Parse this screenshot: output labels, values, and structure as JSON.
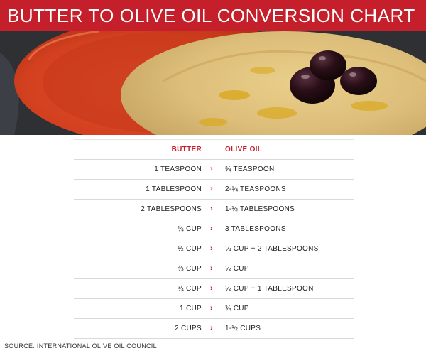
{
  "title": "BUTTER TO OLIVE OIL CONVERSION CHART",
  "photo": "hummus-with-olive-oil-and-olives",
  "table": {
    "headers": {
      "butter": "BUTTER",
      "olive_oil": "OLIVE OIL"
    },
    "rows": [
      {
        "butter": "1 TEASPOON",
        "olive_oil": "¾ TEASPOON"
      },
      {
        "butter": "1 TABLESPOON",
        "olive_oil": "2-¼ TEASPOONS"
      },
      {
        "butter": "2 TABLESPOONS",
        "olive_oil": "1-½ TABLESPOONS"
      },
      {
        "butter": "¼ CUP",
        "olive_oil": "3 TABLESPOONS"
      },
      {
        "butter": "½ CUP",
        "olive_oil": "¼ CUP + 2 TABLESPOONS"
      },
      {
        "butter": "⅔ CUP",
        "olive_oil": "½ CUP"
      },
      {
        "butter": "¾ CUP",
        "olive_oil": "½ CUP + 1 TABLESPOON"
      },
      {
        "butter": "1 CUP",
        "olive_oil": "¾ CUP"
      },
      {
        "butter": "2 CUPS",
        "olive_oil": "1-½ CUPS"
      }
    ],
    "arrow_icon": "chevron-right-icon"
  },
  "source": "SOURCE: INTERNATIONAL OLIVE OIL COUNCIL",
  "colors": {
    "accent": "#c41f2a",
    "text": "#222222",
    "divider": "#d9d9d9"
  }
}
